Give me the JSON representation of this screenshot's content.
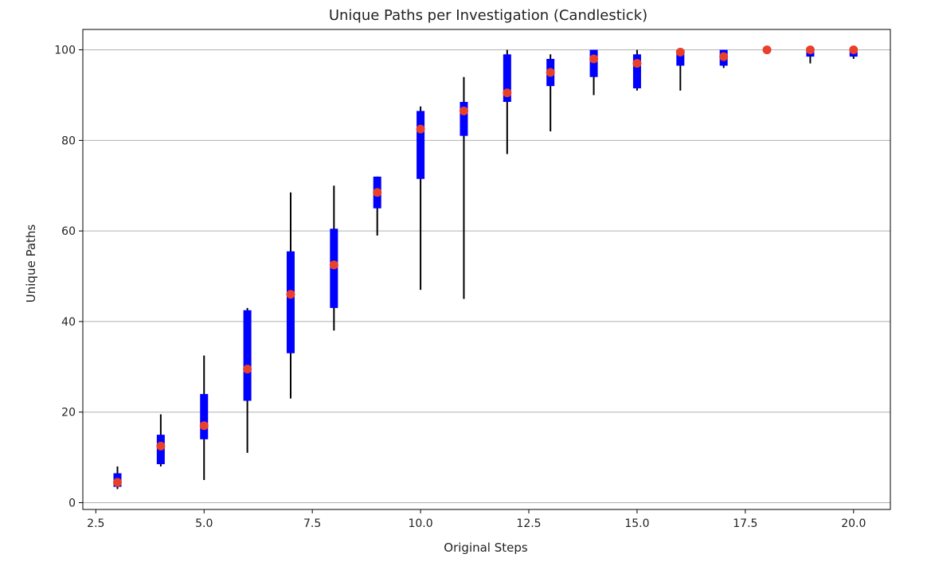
{
  "chart_data": {
    "type": "candlestick",
    "title": "Unique Paths per Investigation (Candlestick)",
    "xlabel": "Original Steps",
    "ylabel": "Unique Paths",
    "xlim": [
      2.2,
      20.85
    ],
    "ylim": [
      -1.5,
      104.5
    ],
    "xticks": [
      2.5,
      5.0,
      7.5,
      10.0,
      12.5,
      15.0,
      17.5,
      20.0
    ],
    "xtick_labels": [
      "2.5",
      "5.0",
      "7.5",
      "10.0",
      "12.5",
      "15.0",
      "17.5",
      "20.0"
    ],
    "yticks": [
      0,
      20,
      40,
      60,
      80,
      100
    ],
    "ytick_labels": [
      "0",
      "20",
      "40",
      "60",
      "80",
      "100"
    ],
    "grid": "y",
    "colors": {
      "box": "#0000ff",
      "whisker": "#000000",
      "marker": "#e8402a",
      "grid": "#b0b0b0"
    },
    "series": [
      {
        "x": 3,
        "low": 3,
        "q1": 3.5,
        "q3": 6.5,
        "high": 8,
        "marker": 4.5
      },
      {
        "x": 4,
        "low": 8,
        "q1": 8.5,
        "q3": 15,
        "high": 19.5,
        "marker": 12.5
      },
      {
        "x": 5,
        "low": 5,
        "q1": 14,
        "q3": 24,
        "high": 32.5,
        "marker": 17
      },
      {
        "x": 6,
        "low": 11,
        "q1": 22.5,
        "q3": 42.5,
        "high": 43,
        "marker": 29.5
      },
      {
        "x": 7,
        "low": 23,
        "q1": 33,
        "q3": 55.5,
        "high": 68.5,
        "marker": 46
      },
      {
        "x": 8,
        "low": 38,
        "q1": 43,
        "q3": 60.5,
        "high": 70,
        "marker": 52.5
      },
      {
        "x": 9,
        "low": 59,
        "q1": 65,
        "q3": 72,
        "high": 72,
        "marker": 68.5
      },
      {
        "x": 10,
        "low": 47,
        "q1": 71.5,
        "q3": 86.5,
        "high": 87.5,
        "marker": 82.5
      },
      {
        "x": 11,
        "low": 45,
        "q1": 81,
        "q3": 88.5,
        "high": 94,
        "marker": 86.5
      },
      {
        "x": 12,
        "low": 77,
        "q1": 88.5,
        "q3": 99,
        "high": 100,
        "marker": 90.5
      },
      {
        "x": 13,
        "low": 82,
        "q1": 92,
        "q3": 98,
        "high": 99,
        "marker": 95
      },
      {
        "x": 14,
        "low": 90,
        "q1": 94,
        "q3": 100,
        "high": 100,
        "marker": 98
      },
      {
        "x": 15,
        "low": 91,
        "q1": 91.5,
        "q3": 99,
        "high": 100,
        "marker": 97
      },
      {
        "x": 16,
        "low": 91,
        "q1": 96.5,
        "q3": 100,
        "high": 100,
        "marker": 99.5
      },
      {
        "x": 17,
        "low": 96,
        "q1": 96.5,
        "q3": 100,
        "high": 100,
        "marker": 98.5
      },
      {
        "x": 18,
        "low": 100,
        "q1": 100,
        "q3": 100,
        "high": 100,
        "marker": 100
      },
      {
        "x": 19,
        "low": 97,
        "q1": 98.5,
        "q3": 100,
        "high": 100,
        "marker": 100
      },
      {
        "x": 20,
        "low": 98,
        "q1": 98.5,
        "q3": 100,
        "high": 100,
        "marker": 100
      }
    ]
  }
}
